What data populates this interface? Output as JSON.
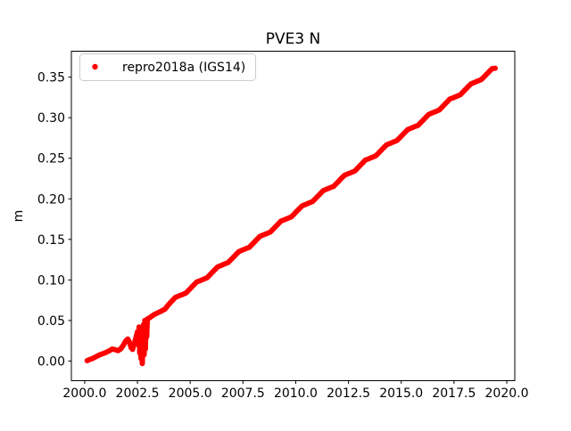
{
  "colors": {
    "series": "#ff0000",
    "axes": "#000000",
    "legend_border": "#cccccc",
    "background": "#ffffff"
  },
  "legend": {
    "position": "upper left",
    "entries": [
      {
        "label": "repro2018a (IGS14)",
        "marker": "dot",
        "marker_color": "#ff0000"
      }
    ]
  },
  "chart_data": {
    "type": "scatter",
    "title": "PVE3 N",
    "xlabel": "",
    "ylabel": "m",
    "grid": false,
    "legend_position": "upper left",
    "xlim": [
      1999.37,
      2020.38
    ],
    "ylim": [
      -0.0242,
      0.382
    ],
    "xticks": [
      2000.0,
      2002.5,
      2005.0,
      2007.5,
      2010.0,
      2012.5,
      2015.0,
      2017.5,
      2020.0
    ],
    "xtick_labels": [
      "2000.0",
      "2002.5",
      "2005.0",
      "2007.5",
      "2010.0",
      "2012.5",
      "2015.0",
      "2017.5",
      "2020.0"
    ],
    "yticks": [
      0.0,
      0.05,
      0.1,
      0.15,
      0.2,
      0.25,
      0.3,
      0.35
    ],
    "ytick_labels": [
      "0.00",
      "0.05",
      "0.10",
      "0.15",
      "0.20",
      "0.25",
      "0.30",
      "0.35"
    ],
    "series": [
      {
        "name": "repro2018a (IGS14)",
        "color": "#ff0000",
        "marker": "dot",
        "points": [
          [
            2000.12,
            0.0005
          ],
          [
            2000.25,
            0.002
          ],
          [
            2000.4,
            0.0035
          ],
          [
            2000.55,
            0.0055
          ],
          [
            2000.7,
            0.0075
          ],
          [
            2000.85,
            0.009
          ],
          [
            2001.0,
            0.0105
          ],
          [
            2001.15,
            0.0125
          ],
          [
            2001.3,
            0.0148
          ],
          [
            2001.45,
            0.014
          ],
          [
            2001.58,
            0.0128
          ],
          [
            2001.7,
            0.0148
          ],
          [
            2001.82,
            0.019
          ],
          [
            2001.94,
            0.0245
          ],
          [
            2002.04,
            0.0272
          ],
          [
            2002.12,
            0.0235
          ],
          [
            2002.2,
            0.0165
          ],
          [
            2002.27,
            0.0143
          ],
          [
            2002.35,
            0.021
          ],
          [
            2002.43,
            0.029
          ],
          [
            2002.5,
            0.036
          ],
          [
            2002.55,
            0.02
          ],
          [
            2002.58,
            0.042
          ],
          [
            2002.61,
            0.01
          ],
          [
            2002.64,
            0.035
          ],
          [
            2002.67,
            0.003
          ],
          [
            2002.7,
            0.028
          ],
          [
            2002.73,
            -0.003
          ],
          [
            2002.76,
            0.02
          ],
          [
            2002.79,
            0.045
          ],
          [
            2002.82,
            0.008
          ],
          [
            2002.85,
            0.05
          ],
          [
            2002.88,
            0.015
          ],
          [
            2002.91,
            0.048
          ],
          [
            2002.94,
            0.03
          ],
          [
            2002.97,
            0.052
          ],
          [
            2003.05,
            0.053
          ],
          [
            2003.3,
            0.0575
          ],
          [
            2003.55,
            0.0605
          ],
          [
            2003.8,
            0.064
          ],
          [
            2004.05,
            0.0718
          ],
          [
            2004.3,
            0.0785
          ],
          [
            2004.55,
            0.0812
          ],
          [
            2004.8,
            0.0839
          ],
          [
            2005.05,
            0.0906
          ],
          [
            2005.3,
            0.0973
          ],
          [
            2005.55,
            0.1
          ],
          [
            2005.8,
            0.1027
          ],
          [
            2006.05,
            0.1094
          ],
          [
            2006.3,
            0.1161
          ],
          [
            2006.55,
            0.1188
          ],
          [
            2006.8,
            0.1215
          ],
          [
            2007.05,
            0.1282
          ],
          [
            2007.3,
            0.1349
          ],
          [
            2007.55,
            0.1376
          ],
          [
            2007.8,
            0.1403
          ],
          [
            2008.05,
            0.147
          ],
          [
            2008.3,
            0.1537
          ],
          [
            2008.55,
            0.1564
          ],
          [
            2008.8,
            0.1591
          ],
          [
            2009.05,
            0.1658
          ],
          [
            2009.3,
            0.1725
          ],
          [
            2009.55,
            0.1752
          ],
          [
            2009.8,
            0.1779
          ],
          [
            2010.05,
            0.1846
          ],
          [
            2010.3,
            0.1913
          ],
          [
            2010.55,
            0.194
          ],
          [
            2010.8,
            0.1967
          ],
          [
            2011.05,
            0.2034
          ],
          [
            2011.3,
            0.2101
          ],
          [
            2011.55,
            0.2128
          ],
          [
            2011.8,
            0.2155
          ],
          [
            2012.05,
            0.2222
          ],
          [
            2012.3,
            0.2289
          ],
          [
            2012.55,
            0.2316
          ],
          [
            2012.8,
            0.2343
          ],
          [
            2013.05,
            0.241
          ],
          [
            2013.3,
            0.2477
          ],
          [
            2013.55,
            0.2504
          ],
          [
            2013.8,
            0.2531
          ],
          [
            2014.05,
            0.2598
          ],
          [
            2014.3,
            0.2665
          ],
          [
            2014.55,
            0.2692
          ],
          [
            2014.8,
            0.2719
          ],
          [
            2015.05,
            0.2786
          ],
          [
            2015.3,
            0.2853
          ],
          [
            2015.55,
            0.288
          ],
          [
            2015.8,
            0.2907
          ],
          [
            2016.05,
            0.2974
          ],
          [
            2016.3,
            0.3041
          ],
          [
            2016.55,
            0.3068
          ],
          [
            2016.8,
            0.3095
          ],
          [
            2017.05,
            0.3162
          ],
          [
            2017.3,
            0.3229
          ],
          [
            2017.55,
            0.3256
          ],
          [
            2017.8,
            0.3283
          ],
          [
            2018.05,
            0.335
          ],
          [
            2018.3,
            0.3417
          ],
          [
            2018.55,
            0.3444
          ],
          [
            2018.8,
            0.3471
          ],
          [
            2019.05,
            0.3538
          ],
          [
            2019.3,
            0.3605
          ],
          [
            2019.45,
            0.361
          ]
        ]
      }
    ]
  }
}
